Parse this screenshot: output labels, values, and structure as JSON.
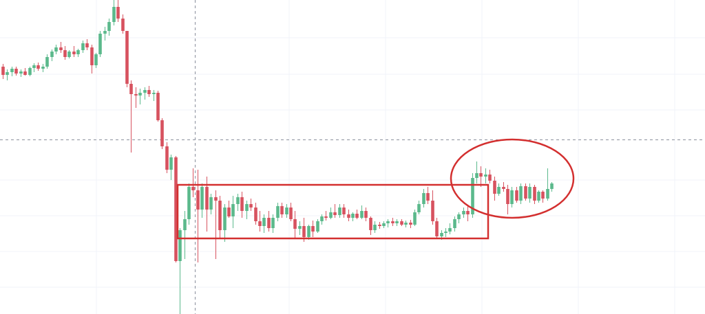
{
  "chart_data": {
    "type": "candlestick",
    "ylim": [
      0,
      457
    ],
    "up_color": "#5bb98c",
    "down_color": "#d7525f",
    "open": [
      360,
      348,
      352,
      357,
      350,
      353,
      348,
      358,
      362,
      357,
      360,
      374,
      382,
      388,
      384,
      374,
      382,
      378,
      384,
      394,
      388,
      362,
      378,
      408,
      412,
      425,
      447,
      430,
      412,
      335,
      320,
      318,
      322,
      326,
      320,
      322,
      282,
      244,
      210,
      228,
      77,
      122,
      138,
      185,
      180,
      152,
      185,
      152,
      170,
      165,
      122,
      155,
      142,
      160,
      170,
      150,
      160,
      155,
      135,
      128,
      140,
      125,
      140,
      157,
      145,
      155,
      138,
      124,
      128,
      112,
      128,
      120,
      135,
      142,
      140,
      148,
      144,
      155,
      145,
      140,
      146,
      140,
      150,
      140,
      122,
      130,
      128,
      132,
      135,
      132,
      135,
      130,
      133,
      130,
      148,
      160,
      176,
      165,
      135,
      113,
      118,
      120,
      125,
      138,
      145,
      150,
      145,
      198,
      205,
      200,
      203,
      194,
      175,
      185,
      182,
      160,
      180,
      165,
      186,
      168,
      185,
      165,
      178,
      168,
      182
    ],
    "high": [
      364,
      356,
      360,
      360,
      356,
      358,
      360,
      365,
      366,
      364,
      378,
      385,
      392,
      396,
      390,
      384,
      390,
      386,
      398,
      400,
      392,
      380,
      412,
      418,
      430,
      457,
      457,
      436,
      412,
      340,
      330,
      328,
      330,
      332,
      326,
      325,
      285,
      250,
      232,
      230,
      125,
      150,
      190,
      212,
      210,
      190,
      200,
      175,
      180,
      172,
      160,
      165,
      172,
      175,
      178,
      165,
      168,
      162,
      150,
      145,
      150,
      145,
      162,
      162,
      160,
      162,
      150,
      135,
      140,
      130,
      136,
      138,
      145,
      150,
      155,
      160,
      160,
      160,
      152,
      148,
      152,
      158,
      155,
      142,
      135,
      134,
      135,
      138,
      140,
      138,
      138,
      136,
      137,
      152,
      165,
      182,
      185,
      180,
      140,
      122,
      125,
      132,
      142,
      148,
      155,
      158,
      205,
      222,
      215,
      212,
      210,
      200,
      190,
      192,
      188,
      185,
      185,
      190,
      190,
      190,
      188,
      180,
      180,
      212,
      192
    ],
    "low": [
      342,
      340,
      346,
      347,
      345,
      347,
      346,
      352,
      354,
      352,
      357,
      368,
      378,
      380,
      370,
      372,
      374,
      374,
      380,
      384,
      350,
      358,
      374,
      398,
      405,
      420,
      425,
      408,
      330,
      235,
      300,
      305,
      312,
      316,
      310,
      280,
      240,
      205,
      195,
      75,
      0,
      80,
      130,
      170,
      75,
      140,
      120,
      145,
      80,
      110,
      105,
      140,
      125,
      150,
      140,
      138,
      150,
      130,
      120,
      118,
      120,
      118,
      135,
      140,
      140,
      135,
      110,
      115,
      105,
      108,
      112,
      118,
      130,
      136,
      138,
      140,
      140,
      140,
      135,
      135,
      138,
      138,
      135,
      115,
      118,
      124,
      125,
      126,
      128,
      128,
      128,
      126,
      125,
      128,
      145,
      155,
      160,
      130,
      110,
      108,
      112,
      116,
      120,
      132,
      140,
      135,
      140,
      190,
      185,
      190,
      190,
      165,
      172,
      178,
      145,
      155,
      162,
      160,
      165,
      162,
      160,
      162,
      162,
      165,
      178
    ],
    "close": [
      348,
      352,
      357,
      350,
      353,
      348,
      358,
      362,
      357,
      360,
      374,
      382,
      388,
      384,
      374,
      382,
      378,
      384,
      394,
      388,
      362,
      378,
      408,
      412,
      425,
      447,
      430,
      412,
      335,
      320,
      318,
      322,
      326,
      320,
      322,
      282,
      244,
      210,
      228,
      77,
      122,
      138,
      185,
      180,
      152,
      185,
      152,
      170,
      165,
      122,
      155,
      142,
      160,
      170,
      150,
      160,
      155,
      135,
      128,
      140,
      125,
      140,
      157,
      145,
      155,
      138,
      124,
      128,
      112,
      128,
      120,
      135,
      142,
      140,
      148,
      144,
      155,
      145,
      140,
      146,
      140,
      150,
      140,
      122,
      130,
      128,
      132,
      135,
      132,
      135,
      130,
      133,
      130,
      148,
      160,
      176,
      165,
      135,
      113,
      118,
      120,
      125,
      138,
      145,
      150,
      145,
      198,
      205,
      200,
      203,
      194,
      175,
      185,
      182,
      160,
      180,
      165,
      186,
      168,
      185,
      165,
      178,
      168,
      182,
      190
    ]
  }
}
